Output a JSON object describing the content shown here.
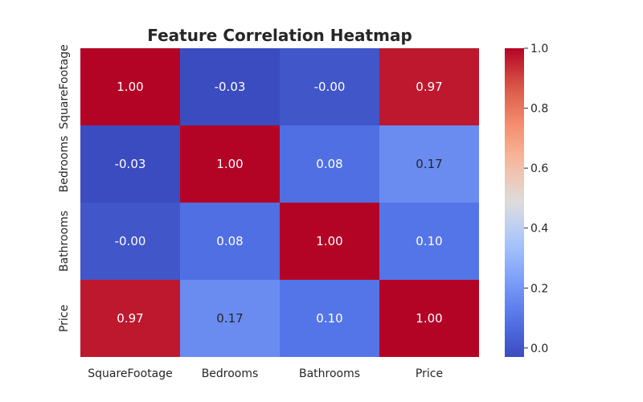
{
  "chart_data": {
    "type": "heatmap",
    "title": "Feature Correlation Heatmap",
    "xlabel": "",
    "ylabel": "",
    "x_categories": [
      "SquareFootage",
      "Bedrooms",
      "Bathrooms",
      "Price"
    ],
    "y_categories": [
      "SquareFootage",
      "Bedrooms",
      "Bathrooms",
      "Price"
    ],
    "values": [
      [
        1.0,
        -0.03,
        -0.0,
        0.97
      ],
      [
        -0.03,
        1.0,
        0.08,
        0.17
      ],
      [
        -0.0,
        0.08,
        1.0,
        0.1
      ],
      [
        0.97,
        0.17,
        0.1,
        1.0
      ]
    ],
    "cell_labels": [
      [
        "1.00",
        "-0.03",
        "-0.00",
        "0.97"
      ],
      [
        "-0.03",
        "1.00",
        "0.08",
        "0.17"
      ],
      [
        "-0.00",
        "0.08",
        "1.00",
        "0.10"
      ],
      [
        "0.97",
        "0.17",
        "0.10",
        "1.00"
      ]
    ],
    "colormap": "coolwarm",
    "colorbar": {
      "range": [
        -0.03,
        1.0
      ],
      "ticks": [
        0.0,
        0.2,
        0.4,
        0.6,
        0.8,
        1.0
      ],
      "tick_labels": [
        "0.0",
        "0.2",
        "0.4",
        "0.6",
        "0.8",
        "1.0"
      ]
    },
    "colors": {
      "low": "#3b4cc0",
      "mid": "#dddcdc",
      "high": "#b40426",
      "text": "#262626"
    },
    "grid": false,
    "legend": "colorbar-right"
  }
}
